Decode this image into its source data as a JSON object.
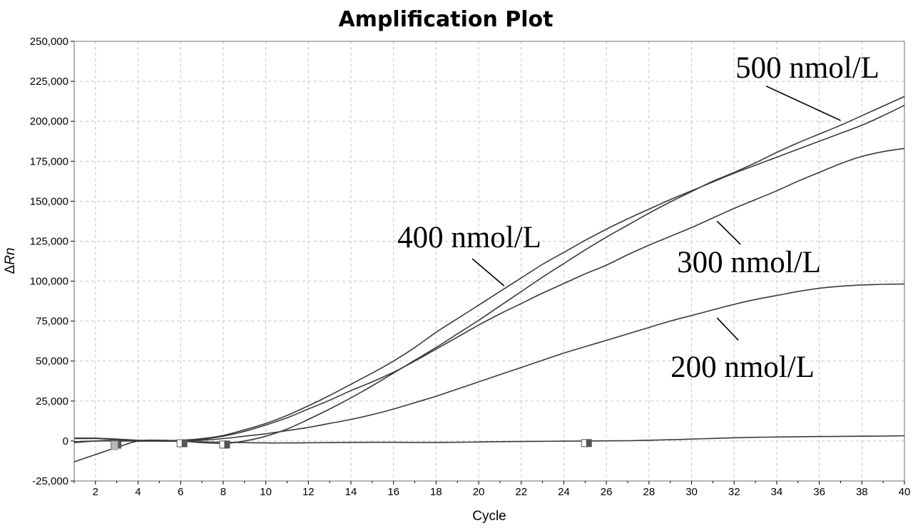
{
  "chart_data": {
    "type": "line",
    "title": "Amplification Plot",
    "xlabel": "Cycle",
    "ylabel_prefix": "Δ",
    "ylabel_italic": "Rn",
    "xlim": [
      1,
      40
    ],
    "ylim": [
      -25000,
      250000
    ],
    "grid": true,
    "x_ticks": [
      2,
      4,
      6,
      8,
      10,
      12,
      14,
      16,
      18,
      20,
      22,
      24,
      26,
      28,
      30,
      32,
      34,
      36,
      38,
      40
    ],
    "y_ticks": [
      {
        "value": 250000,
        "label": "250,000"
      },
      {
        "value": 225000,
        "label": "225,000"
      },
      {
        "value": 200000,
        "label": "200,000"
      },
      {
        "value": 175000,
        "label": "175,000"
      },
      {
        "value": 150000,
        "label": "150,000"
      },
      {
        "value": 125000,
        "label": "125,000"
      },
      {
        "value": 100000,
        "label": "100,000"
      },
      {
        "value": 75000,
        "label": "75,000"
      },
      {
        "value": 50000,
        "label": "50,000"
      },
      {
        "value": 25000,
        "label": "25,000"
      },
      {
        "value": 0,
        "label": "0"
      },
      {
        "value": -25000,
        "label": "-25,000"
      }
    ],
    "x": [
      1,
      2,
      3,
      4,
      5,
      6,
      7,
      8,
      9,
      10,
      11,
      12,
      13,
      14,
      15,
      16,
      17,
      18,
      19,
      20,
      21,
      22,
      23,
      24,
      25,
      26,
      27,
      28,
      29,
      30,
      31,
      32,
      33,
      34,
      35,
      36,
      37,
      38,
      39,
      40
    ],
    "series": [
      {
        "name": "500 nmol/L",
        "values": [
          -13000,
          -8500,
          -4000,
          0,
          500,
          0,
          -1000,
          -1500,
          0,
          3000,
          7500,
          13500,
          20000,
          27000,
          34500,
          42500,
          50500,
          58500,
          67000,
          75500,
          84500,
          93500,
          102500,
          111000,
          119500,
          127500,
          135000,
          142500,
          149500,
          156000,
          162500,
          168000,
          174000,
          180500,
          186500,
          192000,
          197500,
          203500,
          209500,
          215500
        ]
      },
      {
        "name": "400 nmol/L",
        "values": [
          -500,
          0,
          0,
          0,
          200,
          500,
          1500,
          3500,
          7000,
          11000,
          16000,
          22000,
          28500,
          35500,
          42500,
          50000,
          58500,
          68000,
          76500,
          85000,
          93500,
          102000,
          110500,
          118000,
          125500,
          132500,
          139000,
          145000,
          151000,
          156500,
          162000,
          167500,
          172500,
          177500,
          182500,
          187500,
          192500,
          197500,
          203500,
          210000
        ]
      },
      {
        "name": "300 nmol/L",
        "values": [
          -1000,
          0,
          500,
          0,
          0,
          0,
          1000,
          3000,
          6000,
          10000,
          14500,
          20000,
          25500,
          31500,
          37000,
          43000,
          50000,
          57500,
          65000,
          72500,
          79500,
          86000,
          92500,
          98500,
          104500,
          110000,
          116500,
          122500,
          128000,
          133500,
          139500,
          145500,
          151000,
          156500,
          162500,
          168000,
          173500,
          178000,
          181000,
          183000
        ]
      },
      {
        "name": "200 nmol/L",
        "values": [
          1500,
          1500,
          1000,
          0,
          0,
          0,
          500,
          1500,
          3000,
          4500,
          6500,
          8500,
          11000,
          13500,
          16500,
          20000,
          24000,
          28000,
          32500,
          37000,
          41500,
          46000,
          50500,
          55000,
          59000,
          63000,
          67000,
          71000,
          75000,
          78500,
          82000,
          85500,
          88500,
          91000,
          93500,
          95500,
          96800,
          97600,
          98000,
          98200
        ]
      },
      {
        "name": "",
        "values": [
          1800,
          1800,
          1200,
          500,
          0,
          -200,
          -500,
          -800,
          -1000,
          -1200,
          -1200,
          -1100,
          -1000,
          -900,
          -800,
          -800,
          -900,
          -900,
          -800,
          -600,
          -400,
          -300,
          -200,
          -100,
          0,
          100,
          200,
          500,
          800,
          1200,
          1600,
          2000,
          2300,
          2500,
          2700,
          2800,
          2900,
          3000,
          3100,
          3300
        ]
      }
    ],
    "annotations": [
      {
        "text": "500 nmol/L",
        "line_from": [
          37,
          200500
        ],
        "line_to": [
          33.5,
          222000
        ]
      },
      {
        "text": "400 nmol/L",
        "line_from": [
          21.2,
          97000
        ],
        "line_to": [
          19.7,
          114000
        ]
      },
      {
        "text": "300 nmol/L",
        "line_from": [
          32.3,
          123000
        ],
        "line_to": [
          31.2,
          137500
        ]
      },
      {
        "text": "200 nmol/L",
        "line_from": [
          32.2,
          63000
        ],
        "line_to": [
          31.2,
          77000
        ]
      }
    ],
    "threshold_markers": [
      {
        "x": 3.0,
        "y": -2300
      },
      {
        "x": 6.1,
        "y": -1400
      },
      {
        "x": 8.1,
        "y": -2200
      },
      {
        "x": 25.1,
        "y": -1300
      }
    ]
  }
}
